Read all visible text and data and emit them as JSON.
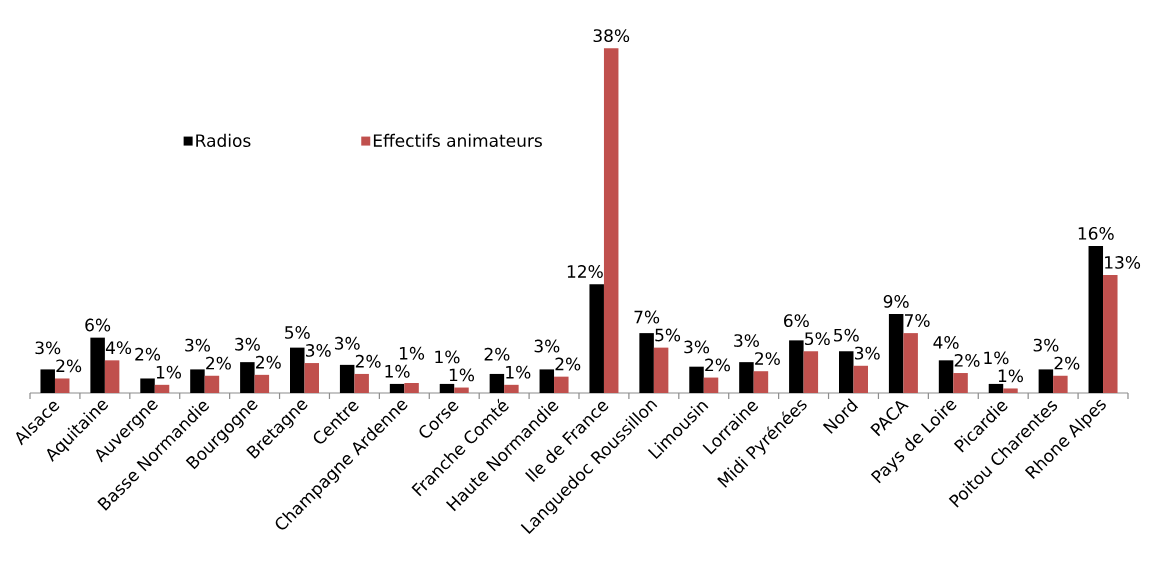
{
  "chart_data": {
    "type": "bar",
    "categories": [
      "Alsace",
      "Aquitaine",
      "Auvergne",
      "Basse Normandie",
      "Bourgogne",
      "Bretagne",
      "Centre",
      "Champagne Ardenne",
      "Corse",
      "Franche Comté",
      "Haute Normandie",
      "Ile de France",
      "Languedoc Roussillon",
      "Limousin",
      "Lorraine",
      "Midi Pyrénées",
      "Nord",
      "PACA",
      "Pays de Loire",
      "Picardie",
      "Poitou Charentes",
      "Rhone Alpes"
    ],
    "series": [
      {
        "name": "Radios",
        "color": "#000000",
        "values": [
          2.6,
          6.1,
          1.6,
          2.6,
          3.4,
          5.0,
          3.1,
          1.0,
          1.0,
          2.1,
          2.6,
          12.0,
          6.6,
          2.9,
          3.4,
          5.8,
          4.6,
          8.7,
          3.6,
          1.0,
          2.6,
          16.2
        ],
        "value_labels": [
          "3%",
          "6%",
          "2%",
          "3%",
          "3%",
          "5%",
          "3%",
          "1%",
          "1%",
          "2%",
          "3%",
          "12%",
          "7%",
          "3%",
          "3%",
          "6%",
          "5%",
          "9%",
          "4%",
          "1%",
          "3%",
          "16%"
        ]
      },
      {
        "name": "Effectifs animateurs",
        "color": "#c0504d",
        "values": [
          1.6,
          3.6,
          0.9,
          1.9,
          2.0,
          3.3,
          2.1,
          1.1,
          0.6,
          0.9,
          1.8,
          38.0,
          5.0,
          1.7,
          2.4,
          4.6,
          3.0,
          6.6,
          2.2,
          0.5,
          1.9,
          13.0
        ],
        "value_labels": [
          "2%",
          "4%",
          "1%",
          "2%",
          "2%",
          "3%",
          "2%",
          "1%",
          "1%",
          "1%",
          "2%",
          "38%",
          "5%",
          "2%",
          "2%",
          "5%",
          "3%",
          "7%",
          "2%",
          "1%",
          "2%",
          "13%"
        ]
      }
    ],
    "legend": "top left"
  }
}
